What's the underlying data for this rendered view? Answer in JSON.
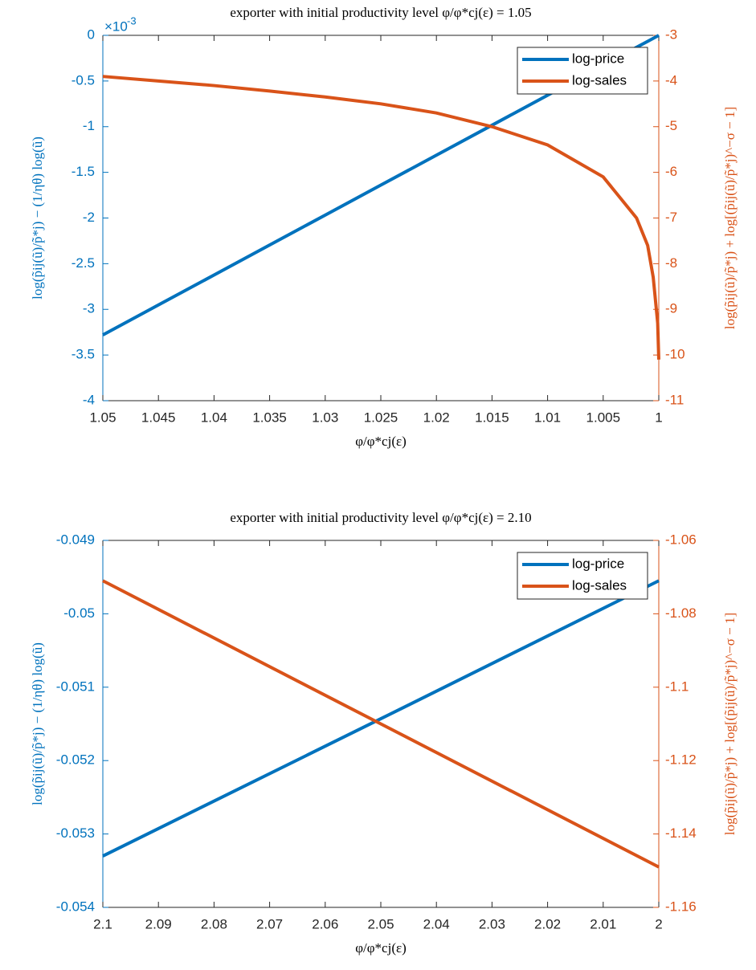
{
  "chart_data": [
    {
      "type": "line",
      "title": "exporter with initial productivity level φ/φ*cj(ε) = 1.05",
      "x_label": "φ/φ*cj(ε)",
      "y_label": "log(p̃ij(ũ)/p̃*j) − (1/ηθ) log(ũ)",
      "y2_label": "log(p̃ij(ũ)/p̃*j) + log[(p̃ij(ũ)/p̃*j)^−σ − 1]",
      "y_exponent": {
        "base": "×10",
        "power": "-3"
      },
      "x": [
        1.05,
        1.045,
        1.04,
        1.035,
        1.03,
        1.025,
        1.02,
        1.015,
        1.01,
        1.005,
        1.002,
        1.001,
        1.0005,
        1.0001,
        1.0
      ],
      "xlim": [
        1.05,
        1
      ],
      "xticks": [
        1.05,
        1.045,
        1.04,
        1.035,
        1.03,
        1.025,
        1.02,
        1.015,
        1.01,
        1.005,
        1
      ],
      "ylim": [
        -0.004,
        0
      ],
      "yticks": [
        {
          "value": -0.004,
          "label": "-4"
        },
        {
          "value": -0.0035,
          "label": "-3.5"
        },
        {
          "value": -0.003,
          "label": "-3"
        },
        {
          "value": -0.0025,
          "label": "-2.5"
        },
        {
          "value": -0.002,
          "label": "-2"
        },
        {
          "value": -0.0015,
          "label": "-1.5"
        },
        {
          "value": -0.001,
          "label": "-1"
        },
        {
          "value": -0.0005,
          "label": "-0.5"
        },
        {
          "value": 0,
          "label": "0"
        }
      ],
      "y2lim": [
        -11,
        -3
      ],
      "y2ticks": [
        -11,
        -10,
        -9,
        -8,
        -7,
        -6,
        -5,
        -4,
        -3
      ],
      "legend": "upper right",
      "series": [
        {
          "name": "log-price",
          "color": "#0072BD",
          "axis": "y",
          "values": [
            -0.00328,
            -0.002952,
            -0.002624,
            -0.002296,
            -0.001968,
            -0.00164,
            -0.001312,
            -0.000984,
            -0.000656,
            -0.000328,
            -0.0001312,
            -6.56e-05,
            -3.28e-05,
            -6.56e-06,
            0
          ]
        },
        {
          "name": "log-sales",
          "color": "#D95319",
          "axis": "y2",
          "values": [
            -3.9,
            -4.0,
            -4.1,
            -4.22,
            -4.35,
            -4.5,
            -4.7,
            -5.0,
            -5.4,
            -6.1,
            -7.0,
            -7.6,
            -8.3,
            -9.3,
            -10.1
          ]
        }
      ]
    },
    {
      "type": "line",
      "title": "exporter with initial productivity level φ/φ*cj(ε) = 2.10",
      "x_label": "φ/φ*cj(ε)",
      "y_label": "log(p̃ij(ũ)/p̃*j) − (1/ηθ) log(ũ)",
      "y2_label": "log(p̃ij(ũ)/p̃*j) + log[(p̃ij(ũ)/p̃*j)^−σ − 1]",
      "x": [
        2.1,
        2.05,
        2.0
      ],
      "xlim": [
        2.1,
        2
      ],
      "xticks": [
        2.1,
        2.09,
        2.08,
        2.07,
        2.06,
        2.05,
        2.04,
        2.03,
        2.02,
        2.01,
        2
      ],
      "ylim": [
        -0.054,
        -0.049
      ],
      "yticks": [
        -0.054,
        -0.053,
        -0.052,
        -0.051,
        -0.05,
        -0.049
      ],
      "y2lim": [
        -1.16,
        -1.06
      ],
      "y2ticks": [
        -1.16,
        -1.14,
        -1.12,
        -1.1,
        -1.08,
        -1.06
      ],
      "legend": "upper right",
      "series": [
        {
          "name": "log-price",
          "color": "#0072BD",
          "axis": "y",
          "values": [
            -0.0533,
            -0.05143,
            -0.04955
          ]
        },
        {
          "name": "log-sales",
          "color": "#D95319",
          "axis": "y2",
          "values": [
            -1.071,
            -1.11,
            -1.149
          ]
        }
      ]
    }
  ]
}
